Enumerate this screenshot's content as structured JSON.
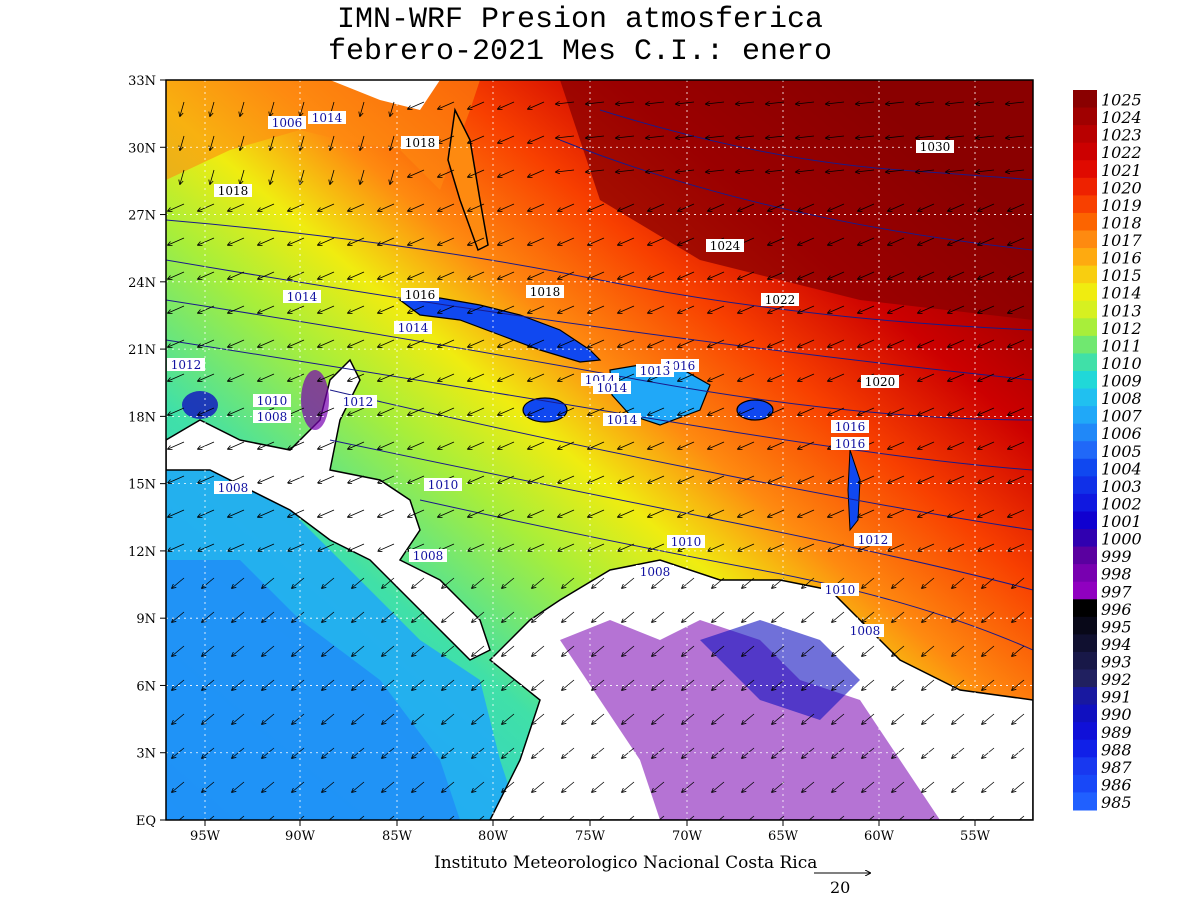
{
  "title": {
    "line1": "IMN-WRF  Presion atmosferica",
    "line2": " febrero-2021 Mes C.I.: enero"
  },
  "footer": "Instituto Meteorologico Nacional Costa Rica",
  "vector_ref": "20",
  "axes": {
    "lat_labels": [
      "33N",
      "30N",
      "27N",
      "24N",
      "21N",
      "18N",
      "15N",
      "12N",
      "9N",
      "6N",
      "3N",
      "EQ"
    ],
    "lon_labels": [
      "95W",
      "90W",
      "85W",
      "80W",
      "75W",
      "70W",
      "65W",
      "60W",
      "55W"
    ]
  },
  "colorbar": {
    "labels": [
      "1025",
      "1024",
      "1023",
      "1022",
      "1021",
      "1020",
      "1019",
      "1018",
      "1017",
      "1016",
      "1015",
      "1014",
      "1013",
      "1012",
      "1011",
      "1010",
      "1009",
      "1008",
      "1007",
      "1006",
      "1005",
      "1004",
      "1003",
      "1002",
      "1001",
      "1000",
      "999",
      "998",
      "997",
      "996",
      "995",
      "994",
      "993",
      "992",
      "991",
      "990",
      "989",
      "988",
      "987",
      "986",
      "985"
    ],
    "colors": [
      "#8a0000",
      "#a00000",
      "#b80000",
      "#cc0000",
      "#e00a00",
      "#ee2200",
      "#f84000",
      "#fc6400",
      "#fe8a10",
      "#feaa10",
      "#f8ce10",
      "#f0ec10",
      "#d6f020",
      "#a8ee3a",
      "#70e870",
      "#40e0a8",
      "#20d8d8",
      "#20c0f0",
      "#20a8f8",
      "#2088f8",
      "#2068f8",
      "#1048f0",
      "#1030e8",
      "#1018e0",
      "#1000d0",
      "#3000b0",
      "#5a00a0",
      "#7800b0",
      "#9000c0",
      "#000000",
      "#080818",
      "#101030",
      "#181848",
      "#202060",
      "#1818a0",
      "#1010c0",
      "#1010d8",
      "#1020e8",
      "#1838f0",
      "#1848f8",
      "#2060ff"
    ]
  },
  "isobar_labels": [
    {
      "text": "1030"
    },
    {
      "text": "1024"
    },
    {
      "text": "1022"
    },
    {
      "text": "1020"
    },
    {
      "text": "1018"
    },
    {
      "text": "1018"
    },
    {
      "text": "1018"
    },
    {
      "text": "1016"
    },
    {
      "text": "1016"
    },
    {
      "text": "1016"
    },
    {
      "text": "1016"
    },
    {
      "text": "1014"
    },
    {
      "text": "1014"
    },
    {
      "text": "1014"
    },
    {
      "text": "1014"
    },
    {
      "text": "1014"
    },
    {
      "text": "1012"
    },
    {
      "text": "1012"
    },
    {
      "text": "1012"
    },
    {
      "text": "1010"
    },
    {
      "text": "1010"
    },
    {
      "text": "1010"
    },
    {
      "text": "1008"
    },
    {
      "text": "1008"
    },
    {
      "text": "1008"
    },
    {
      "text": "1008"
    },
    {
      "text": "1008"
    },
    {
      "text": "1006"
    },
    {
      "text": "1010"
    },
    {
      "text": "1014"
    },
    {
      "text": "1013"
    }
  ]
}
